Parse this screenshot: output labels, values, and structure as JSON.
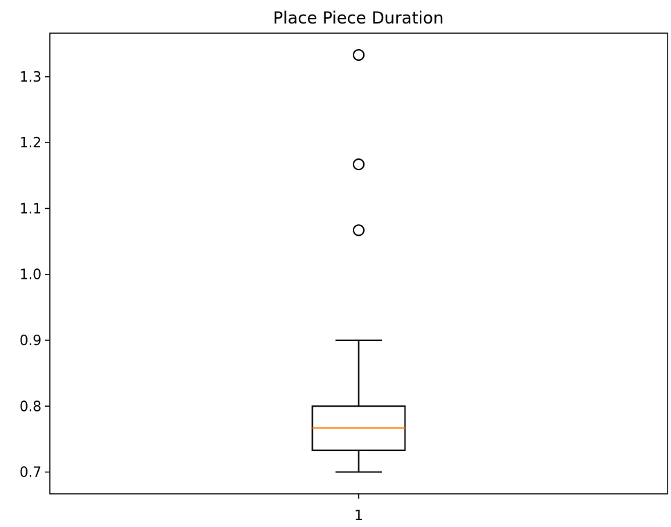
{
  "chart_data": {
    "type": "boxplot",
    "title": "Place Piece Duration",
    "xlabel": "",
    "ylabel": "",
    "ylim": [
      0.667,
      1.366
    ],
    "yticks": [
      {
        "value": 0.7,
        "label": "0.7"
      },
      {
        "value": 0.8,
        "label": "0.8"
      },
      {
        "value": 0.9,
        "label": "0.9"
      },
      {
        "value": 1.0,
        "label": "1.0"
      },
      {
        "value": 1.1,
        "label": "1.1"
      },
      {
        "value": 1.2,
        "label": "1.2"
      },
      {
        "value": 1.3,
        "label": "1.3"
      }
    ],
    "categories": [
      "1"
    ],
    "boxes": [
      {
        "label": "1",
        "whisker_low": 0.7,
        "q1": 0.733,
        "median": 0.767,
        "q3": 0.8,
        "whisker_high": 0.9,
        "outliers": [
          1.067,
          1.167,
          1.333
        ]
      }
    ],
    "grid": false,
    "colors": {
      "box": "#000000",
      "median": "#ff7f0e",
      "outlier": "#000000"
    }
  }
}
